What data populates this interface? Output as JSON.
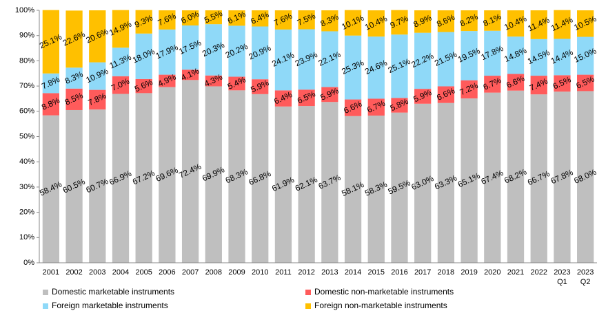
{
  "chart_data": {
    "type": "stacked_bar",
    "categories": [
      "2001",
      "2002",
      "2003",
      "2004",
      "2005",
      "2006",
      "2007",
      "2008",
      "2009",
      "2010",
      "2011",
      "2012",
      "2013",
      "2014",
      "2015",
      "2016",
      "2017",
      "2018",
      "2019",
      "2020",
      "2021",
      "2022",
      "2023 Q1",
      "2023 Q2"
    ],
    "series": [
      {
        "name": "Domestic marketable instruments",
        "color": "#bfbfbf",
        "values": [
          58.4,
          60.5,
          60.7,
          66.9,
          67.2,
          69.6,
          72.4,
          69.9,
          68.3,
          66.8,
          61.9,
          62.1,
          63.7,
          58.1,
          58.3,
          59.5,
          63.0,
          63.3,
          65.1,
          67.4,
          68.2,
          66.7,
          67.8,
          68.0
        ],
        "value_labels": [
          "58.4%",
          "60.5%",
          "60.7%",
          "66.9%",
          "67.2%",
          "69.6%",
          "72.4%",
          "69.9%",
          "68.3%",
          "66.8%",
          "61.9%",
          "62.1%",
          "63.7%",
          "58.1%",
          "58.3%",
          "59.5%",
          "63.0%",
          "63.3%",
          "65.1%",
          "67.4%",
          "68.2%",
          "66.7%",
          "67.8%",
          "68.0%"
        ]
      },
      {
        "name": "Domestic non-marketable instruments",
        "color": "#ff5b5b",
        "values": [
          8.8,
          8.5,
          7.8,
          7.0,
          5.6,
          4.9,
          4.1,
          4.3,
          5.4,
          5.9,
          6.4,
          6.5,
          5.9,
          6.6,
          6.7,
          5.8,
          5.9,
          6.6,
          7.2,
          6.7,
          6.6,
          7.4,
          6.5,
          6.5
        ],
        "value_labels": [
          "8.8%",
          "8.5%",
          "7.8%",
          "7.0%",
          "5.6%",
          "4.9%",
          "4.1%",
          "4.3%",
          "5.4%",
          "5.9%",
          "6.4%",
          "6.5%",
          "5.9%",
          "6.6%",
          "6.7%",
          "5.8%",
          "5.9%",
          "6.6%",
          "7.2%",
          "6.7%",
          "6.6%",
          "7.4%",
          "6.5%",
          "6.5%"
        ]
      },
      {
        "name": "Foreign marketable instruments",
        "color": "#8fd9f8",
        "values": [
          7.8,
          8.3,
          10.9,
          11.3,
          18.0,
          17.9,
          17.5,
          20.3,
          20.2,
          20.9,
          24.1,
          23.9,
          22.1,
          25.3,
          24.6,
          25.1,
          22.2,
          21.5,
          19.5,
          17.8,
          14.8,
          14.5,
          14.4,
          15.0
        ],
        "value_labels": [
          "7.8%",
          "8.3%",
          "10.9%",
          "11.3%",
          "18.0%",
          "17.9%",
          "17.5%",
          "20.3%",
          "20.2%",
          "20.9%",
          "24.1%",
          "23.9%",
          "22.1%",
          "25.3%",
          "24.6%",
          "25.1%",
          "22.2%",
          "21.5%",
          "19.5%",
          "17.8%",
          "14.8%",
          "14.5%",
          "14.4%",
          "15.0%"
        ]
      },
      {
        "name": "Foreign non-marketable instruments",
        "color": "#ffc000",
        "values": [
          25.1,
          22.6,
          20.6,
          14.9,
          9.3,
          7.6,
          6.0,
          5.5,
          6.1,
          6.4,
          7.6,
          7.5,
          8.3,
          10.1,
          10.4,
          9.7,
          8.9,
          8.6,
          8.2,
          8.1,
          10.4,
          11.4,
          11.4,
          10.5
        ],
        "value_labels": [
          "25.1%",
          "22.6%",
          "20.6%",
          "14.9%",
          "9.3%",
          "7.6%",
          "6.0%",
          "5.5%",
          "6.1%",
          "6.4%",
          "7.6%",
          "7.5%",
          "8.3%",
          "10.1%",
          "10.4%",
          "9.7%",
          "8.9%",
          "8.6%",
          "8.2%",
          "8.1%",
          "10.4%",
          "11.4%",
          "11.4%",
          "10.5%"
        ]
      }
    ],
    "ylim": [
      0,
      100
    ],
    "yticks": [
      {
        "value": 0,
        "label": "0%"
      },
      {
        "value": 10,
        "label": "10%"
      },
      {
        "value": 20,
        "label": "20%"
      },
      {
        "value": 30,
        "label": "30%"
      },
      {
        "value": 40,
        "label": "40%"
      },
      {
        "value": 50,
        "label": "50%"
      },
      {
        "value": 60,
        "label": "60%"
      },
      {
        "value": 70,
        "label": "70%"
      },
      {
        "value": 80,
        "label": "80%"
      },
      {
        "value": 90,
        "label": "90%"
      },
      {
        "value": 100,
        "label": "100%"
      }
    ],
    "grid": false,
    "legend": "bottom"
  }
}
